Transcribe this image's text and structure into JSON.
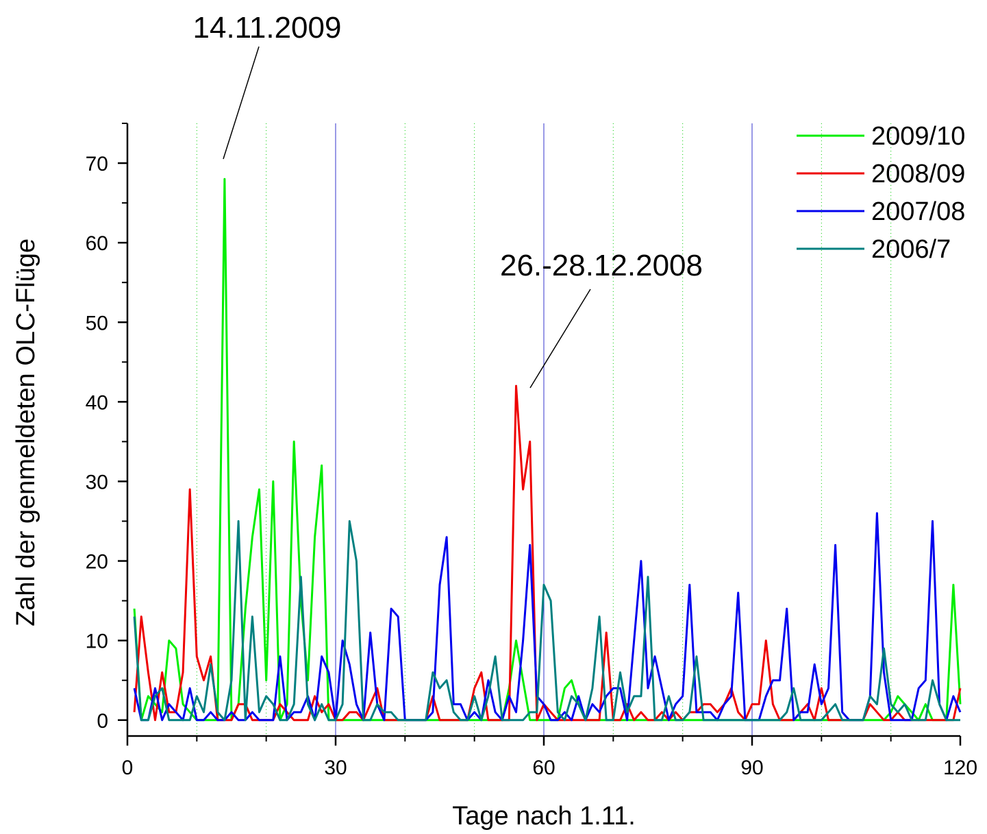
{
  "chart_data": {
    "type": "line",
    "xlabel": "Tage nach 1.11.",
    "ylabel": "Zahl der genmeldeten OLC-Flüge",
    "xlim": [
      0,
      120
    ],
    "ylim": [
      -2,
      75
    ],
    "xticks": [
      0,
      30,
      60,
      90,
      120
    ],
    "yticks": [
      0,
      10,
      20,
      30,
      40,
      50,
      60,
      70
    ],
    "x_tick_labels": [
      "0",
      "30",
      "60",
      "90",
      "120"
    ],
    "y_tick_labels": [
      "0",
      "10",
      "20",
      "30",
      "40",
      "50",
      "60",
      "70"
    ],
    "minor_gridlines_x": [
      10,
      20,
      40,
      50,
      70,
      80,
      100,
      110
    ],
    "major_gridlines_x": [
      30,
      60,
      90
    ],
    "legend_position": "top-right",
    "annotations": [
      {
        "text": "14.11.2009",
        "target": [
          14,
          70
        ]
      },
      {
        "text": "26.-28.12.2008",
        "target": [
          57.5,
          41
        ]
      }
    ],
    "series": [
      {
        "name": "2009/10",
        "color": "#00ee00",
        "x": [
          1,
          2,
          3,
          4,
          5,
          6,
          7,
          8,
          9,
          10,
          11,
          12,
          13,
          14,
          15,
          16,
          17,
          18,
          19,
          20,
          21,
          22,
          23,
          24,
          25,
          26,
          27,
          28,
          29,
          30,
          31,
          32,
          33,
          34,
          35,
          36,
          37,
          38,
          39,
          40,
          41,
          42,
          43,
          44,
          45,
          46,
          47,
          48,
          49,
          50,
          51,
          52,
          53,
          54,
          55,
          56,
          57,
          58,
          59,
          60,
          61,
          62,
          63,
          64,
          65,
          66,
          67,
          68,
          69,
          70,
          71,
          72,
          73,
          74,
          75,
          76,
          77,
          78,
          79,
          80,
          81,
          82,
          83,
          84,
          85,
          86,
          87,
          88,
          89,
          90,
          91,
          92,
          93,
          94,
          95,
          96,
          97,
          98,
          99,
          100,
          101,
          102,
          103,
          104,
          105,
          106,
          107,
          108,
          109,
          110,
          111,
          112,
          113,
          114,
          115,
          116,
          117,
          118,
          119,
          120
        ],
        "y": [
          14,
          0,
          3,
          2,
          1,
          10,
          9,
          2,
          1,
          0,
          0,
          0,
          0,
          68,
          0,
          2,
          14,
          23,
          29,
          5,
          30,
          0,
          2,
          35,
          15,
          5,
          23,
          32,
          0,
          0,
          0,
          0,
          0,
          0,
          0,
          0,
          0,
          0,
          0,
          0,
          0,
          0,
          0,
          0,
          0,
          0,
          0,
          0,
          0,
          0,
          0,
          0,
          0,
          0,
          4,
          10,
          5,
          0,
          0,
          0,
          0,
          0,
          4,
          5,
          2,
          0,
          0,
          0,
          0,
          0,
          0,
          0,
          0,
          0,
          0,
          0,
          0,
          0,
          0,
          0,
          0,
          0,
          0,
          0,
          0,
          0,
          0,
          0,
          0,
          0,
          0,
          0,
          0,
          0,
          0,
          0,
          0,
          0,
          0,
          0,
          0,
          0,
          0,
          0,
          0,
          0,
          0,
          0,
          0,
          1,
          3,
          2,
          1,
          0,
          2,
          0,
          0,
          0,
          17,
          2
        ]
      },
      {
        "name": "2008/09",
        "color": "#ee0000",
        "x": [
          1,
          2,
          3,
          4,
          5,
          6,
          7,
          8,
          9,
          10,
          11,
          12,
          13,
          14,
          15,
          16,
          17,
          18,
          19,
          20,
          21,
          22,
          23,
          24,
          25,
          26,
          27,
          28,
          29,
          30,
          31,
          32,
          33,
          34,
          35,
          36,
          37,
          38,
          39,
          40,
          41,
          42,
          43,
          44,
          45,
          46,
          47,
          48,
          49,
          50,
          51,
          52,
          53,
          54,
          55,
          56,
          57,
          58,
          59,
          60,
          61,
          62,
          63,
          64,
          65,
          66,
          67,
          68,
          69,
          70,
          71,
          72,
          73,
          74,
          75,
          76,
          77,
          78,
          79,
          80,
          81,
          82,
          83,
          84,
          85,
          86,
          87,
          88,
          89,
          90,
          91,
          92,
          93,
          94,
          95,
          96,
          97,
          98,
          99,
          100,
          101,
          102,
          103,
          104,
          105,
          106,
          107,
          108,
          109,
          110,
          111,
          112,
          113,
          114,
          115,
          116,
          117,
          118,
          119,
          120
        ],
        "y": [
          1,
          13,
          6,
          0,
          6,
          1,
          1,
          6,
          29,
          8,
          5,
          8,
          0,
          0,
          0,
          2,
          2,
          0,
          0,
          0,
          0,
          2,
          1,
          0,
          0,
          0,
          3,
          1,
          2,
          0,
          0,
          1,
          1,
          0,
          2,
          4,
          0,
          0,
          0,
          0,
          0,
          0,
          0,
          3,
          0,
          0,
          0,
          0,
          0,
          4,
          6,
          0,
          0,
          0,
          0,
          42,
          29,
          35,
          0,
          2,
          1,
          0,
          0,
          0,
          0,
          0,
          0,
          0,
          11,
          0,
          0,
          2,
          0,
          1,
          0,
          0,
          1,
          0,
          1,
          0,
          1,
          1,
          2,
          2,
          1,
          2,
          4,
          1,
          0,
          2,
          2,
          10,
          2,
          0,
          0,
          0,
          1,
          2,
          0,
          4,
          0,
          0,
          0,
          0,
          0,
          0,
          2,
          1,
          0,
          0,
          1,
          0,
          0,
          0,
          0,
          0,
          0,
          0,
          0,
          4
        ]
      },
      {
        "name": "2007/08",
        "color": "#0000ee",
        "x": [
          1,
          2,
          3,
          4,
          5,
          6,
          7,
          8,
          9,
          10,
          11,
          12,
          13,
          14,
          15,
          16,
          17,
          18,
          19,
          20,
          21,
          22,
          23,
          24,
          25,
          26,
          27,
          28,
          29,
          30,
          31,
          32,
          33,
          34,
          35,
          36,
          37,
          38,
          39,
          40,
          41,
          42,
          43,
          44,
          45,
          46,
          47,
          48,
          49,
          50,
          51,
          52,
          53,
          54,
          55,
          56,
          57,
          58,
          59,
          60,
          61,
          62,
          63,
          64,
          65,
          66,
          67,
          68,
          69,
          70,
          71,
          72,
          73,
          74,
          75,
          76,
          77,
          78,
          79,
          80,
          81,
          82,
          83,
          84,
          85,
          86,
          87,
          88,
          89,
          90,
          91,
          92,
          93,
          94,
          95,
          96,
          97,
          98,
          99,
          100,
          101,
          102,
          103,
          104,
          105,
          106,
          107,
          108,
          109,
          110,
          111,
          112,
          113,
          114,
          115,
          116,
          117,
          118,
          119,
          120
        ],
        "y": [
          4,
          0,
          0,
          4,
          0,
          2,
          1,
          0,
          4,
          0,
          0,
          1,
          0,
          0,
          1,
          0,
          0,
          1,
          0,
          0,
          0,
          8,
          0,
          1,
          1,
          3,
          0,
          8,
          6,
          0,
          10,
          7,
          2,
          0,
          11,
          2,
          0,
          14,
          13,
          0,
          0,
          0,
          0,
          1,
          17,
          23,
          2,
          2,
          0,
          1,
          0,
          5,
          1,
          0,
          3,
          1,
          10,
          22,
          3,
          2,
          0,
          0,
          1,
          0,
          3,
          0,
          2,
          1,
          3,
          4,
          4,
          0,
          10,
          20,
          4,
          8,
          4,
          0,
          2,
          3,
          17,
          1,
          1,
          1,
          0,
          2,
          3,
          16,
          0,
          0,
          0,
          3,
          5,
          5,
          14,
          0,
          1,
          1,
          7,
          2,
          4,
          22,
          1,
          0,
          0,
          0,
          3,
          26,
          6,
          0,
          0,
          0,
          0,
          4,
          5,
          25,
          2,
          0,
          3,
          1
        ]
      },
      {
        "name": "2006/7",
        "color": "#008080",
        "x": [
          1,
          2,
          3,
          4,
          5,
          6,
          7,
          8,
          9,
          10,
          11,
          12,
          13,
          14,
          15,
          16,
          17,
          18,
          19,
          20,
          21,
          22,
          23,
          24,
          25,
          26,
          27,
          28,
          29,
          30,
          31,
          32,
          33,
          34,
          35,
          36,
          37,
          38,
          39,
          40,
          41,
          42,
          43,
          44,
          45,
          46,
          47,
          48,
          49,
          50,
          51,
          52,
          53,
          54,
          55,
          56,
          57,
          58,
          59,
          60,
          61,
          62,
          63,
          64,
          65,
          66,
          67,
          68,
          69,
          70,
          71,
          72,
          73,
          74,
          75,
          76,
          77,
          78,
          79,
          80,
          81,
          82,
          83,
          84,
          85,
          86,
          87,
          88,
          89,
          90,
          91,
          92,
          93,
          94,
          95,
          96,
          97,
          98,
          99,
          100,
          101,
          102,
          103,
          104,
          105,
          106,
          107,
          108,
          109,
          110,
          111,
          112,
          113,
          114,
          115,
          116,
          117,
          118,
          119,
          120
        ],
        "y": [
          13,
          0,
          0,
          3,
          4,
          0,
          0,
          0,
          0,
          3,
          1,
          7,
          1,
          0,
          5,
          25,
          0,
          13,
          1,
          3,
          2,
          0,
          0,
          2,
          18,
          2,
          0,
          2,
          0,
          0,
          2,
          25,
          20,
          0,
          0,
          2,
          1,
          1,
          0,
          0,
          0,
          0,
          0,
          6,
          4,
          5,
          1,
          0,
          0,
          3,
          0,
          3,
          8,
          0,
          0,
          0,
          0,
          1,
          1,
          17,
          15,
          1,
          0,
          3,
          2,
          0,
          4,
          13,
          0,
          0,
          6,
          1,
          3,
          3,
          18,
          0,
          0,
          3,
          0,
          0,
          1,
          8,
          0,
          0,
          0,
          0,
          0,
          0,
          0,
          0,
          0,
          0,
          0,
          0,
          1,
          4,
          0,
          0,
          0,
          0,
          1,
          2,
          0,
          0,
          0,
          0,
          3,
          2,
          9,
          2,
          1,
          2,
          0,
          0,
          0,
          5,
          2,
          0,
          0,
          0
        ]
      }
    ]
  }
}
